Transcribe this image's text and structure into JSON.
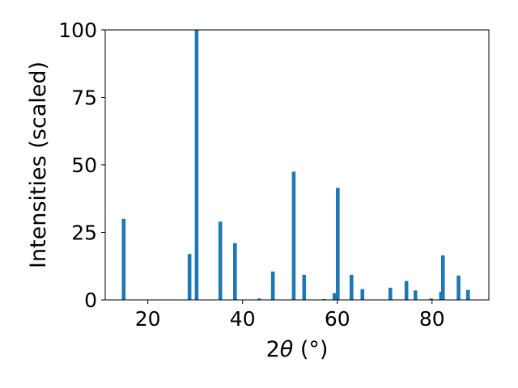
{
  "chart_data": {
    "type": "bar",
    "xlabel_prefix": "2",
    "xlabel_theta": "θ",
    "xlabel_unit": " (°)",
    "ylabel": "Intensities (scaled)",
    "xlim": [
      11,
      92
    ],
    "ylim": [
      0,
      100
    ],
    "xticks": [
      20,
      40,
      60,
      80
    ],
    "yticks": [
      0,
      25,
      50,
      75,
      100
    ],
    "grid": false,
    "bar_color": "#1f77b4",
    "x": [
      14.9,
      28.8,
      30.3,
      35.3,
      38.4,
      43.5,
      46.4,
      50.8,
      53.0,
      57.2,
      59.4,
      60.1,
      63.0,
      65.3,
      71.2,
      74.6,
      76.5,
      79.8,
      81.9,
      82.3,
      85.6,
      87.6
    ],
    "values": [
      30,
      17,
      100,
      29,
      21,
      0.5,
      10.5,
      47.5,
      9.3,
      0.3,
      2.5,
      41.5,
      9.3,
      4,
      4.5,
      7,
      3.5,
      0.5,
      3,
      16.5,
      9,
      3.7
    ]
  }
}
